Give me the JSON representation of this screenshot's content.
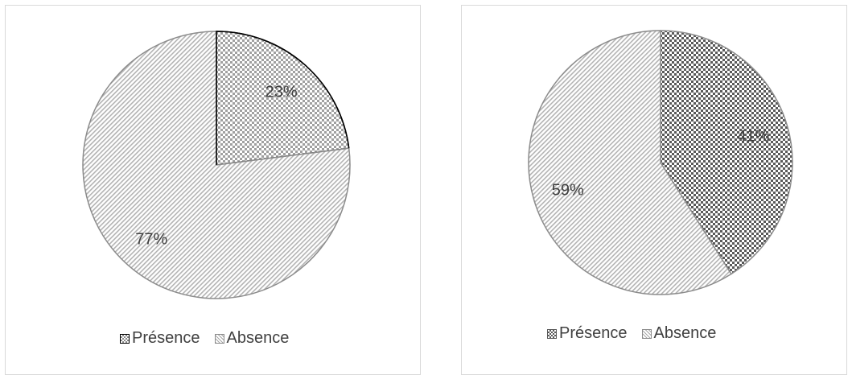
{
  "chart_data": [
    {
      "type": "pie",
      "categories": [
        "Présence",
        "Absence"
      ],
      "values": [
        23,
        77
      ],
      "labels": [
        "23%",
        "77%"
      ],
      "legend": [
        "Présence",
        "Absence"
      ],
      "legend_position": "bottom"
    },
    {
      "type": "pie",
      "categories": [
        "Présence",
        "Absence"
      ],
      "values": [
        41,
        59
      ],
      "labels": [
        "41%",
        "59%"
      ],
      "legend": [
        "Présence",
        "Absence"
      ],
      "legend_position": "bottom"
    }
  ]
}
